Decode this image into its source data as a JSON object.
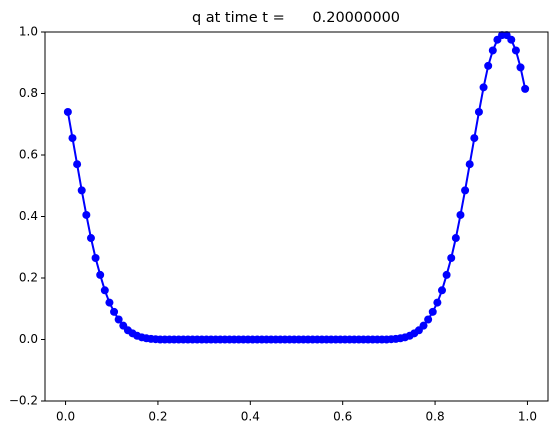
{
  "chart_data": {
    "type": "line",
    "title": "q at time t =      0.20000000",
    "x": [
      0.005,
      0.015,
      0.025,
      0.035,
      0.045,
      0.055,
      0.065,
      0.075,
      0.085,
      0.095,
      0.105,
      0.115,
      0.125,
      0.135,
      0.145,
      0.155,
      0.165,
      0.175,
      0.185,
      0.195,
      0.205,
      0.215,
      0.225,
      0.235,
      0.245,
      0.255,
      0.265,
      0.275,
      0.285,
      0.295,
      0.305,
      0.315,
      0.325,
      0.335,
      0.345,
      0.355,
      0.365,
      0.375,
      0.385,
      0.395,
      0.405,
      0.415,
      0.425,
      0.435,
      0.445,
      0.455,
      0.465,
      0.475,
      0.485,
      0.495,
      0.505,
      0.515,
      0.525,
      0.535,
      0.545,
      0.555,
      0.565,
      0.575,
      0.585,
      0.595,
      0.605,
      0.615,
      0.625,
      0.635,
      0.645,
      0.655,
      0.665,
      0.675,
      0.685,
      0.695,
      0.705,
      0.715,
      0.725,
      0.735,
      0.745,
      0.755,
      0.765,
      0.775,
      0.785,
      0.795,
      0.805,
      0.815,
      0.825,
      0.835,
      0.845,
      0.855,
      0.865,
      0.875,
      0.885,
      0.895,
      0.905,
      0.915,
      0.925,
      0.935,
      0.945,
      0.955,
      0.965,
      0.975,
      0.985,
      0.995
    ],
    "series": [
      {
        "color": "#0000ff",
        "values": [
          0.74,
          0.655,
          0.57,
          0.485,
          0.405,
          0.33,
          0.265,
          0.21,
          0.16,
          0.12,
          0.09,
          0.065,
          0.045,
          0.03,
          0.02,
          0.012,
          0.007,
          0.004,
          0.002,
          0.001,
          0,
          0,
          0,
          0,
          0,
          0,
          0,
          0,
          0,
          0,
          0,
          0,
          0,
          0,
          0,
          0,
          0,
          0,
          0,
          0,
          0,
          0,
          0,
          0,
          0,
          0,
          0,
          0,
          0,
          0,
          0,
          0,
          0,
          0,
          0,
          0,
          0,
          0,
          0,
          0,
          0,
          0,
          0,
          0,
          0,
          0,
          0,
          0,
          0,
          0,
          0.001,
          0.002,
          0.004,
          0.007,
          0.012,
          0.02,
          0.03,
          0.045,
          0.065,
          0.09,
          0.12,
          0.16,
          0.21,
          0.265,
          0.33,
          0.405,
          0.485,
          0.57,
          0.655,
          0.74,
          0.82,
          0.89,
          0.94,
          0.975,
          0.99,
          0.99,
          0.975,
          0.94,
          0.885,
          0.815
        ]
      }
    ],
    "xlim": [
      -0.0445,
      1.0445
    ],
    "xticks": [
      {
        "value": 0,
        "label": "0.0"
      },
      {
        "value": 0.2,
        "label": "0.2"
      },
      {
        "value": 0.4,
        "label": "0.4"
      },
      {
        "value": 0.6,
        "label": "0.6"
      },
      {
        "value": 0.8,
        "label": "0.8"
      },
      {
        "value": 1,
        "label": "1.0"
      }
    ],
    "ylim": [
      -0.2,
      1
    ],
    "yticks": [
      {
        "value": -0.2,
        "label": "−0.2"
      },
      {
        "value": 0,
        "label": "0.0"
      },
      {
        "value": 0.2,
        "label": "0.2"
      },
      {
        "value": 0.4,
        "label": "0.4"
      },
      {
        "value": 0.6,
        "label": "0.6"
      },
      {
        "value": 0.8,
        "label": "0.8"
      },
      {
        "value": 1,
        "label": "1.0"
      }
    ],
    "grid": false
  }
}
